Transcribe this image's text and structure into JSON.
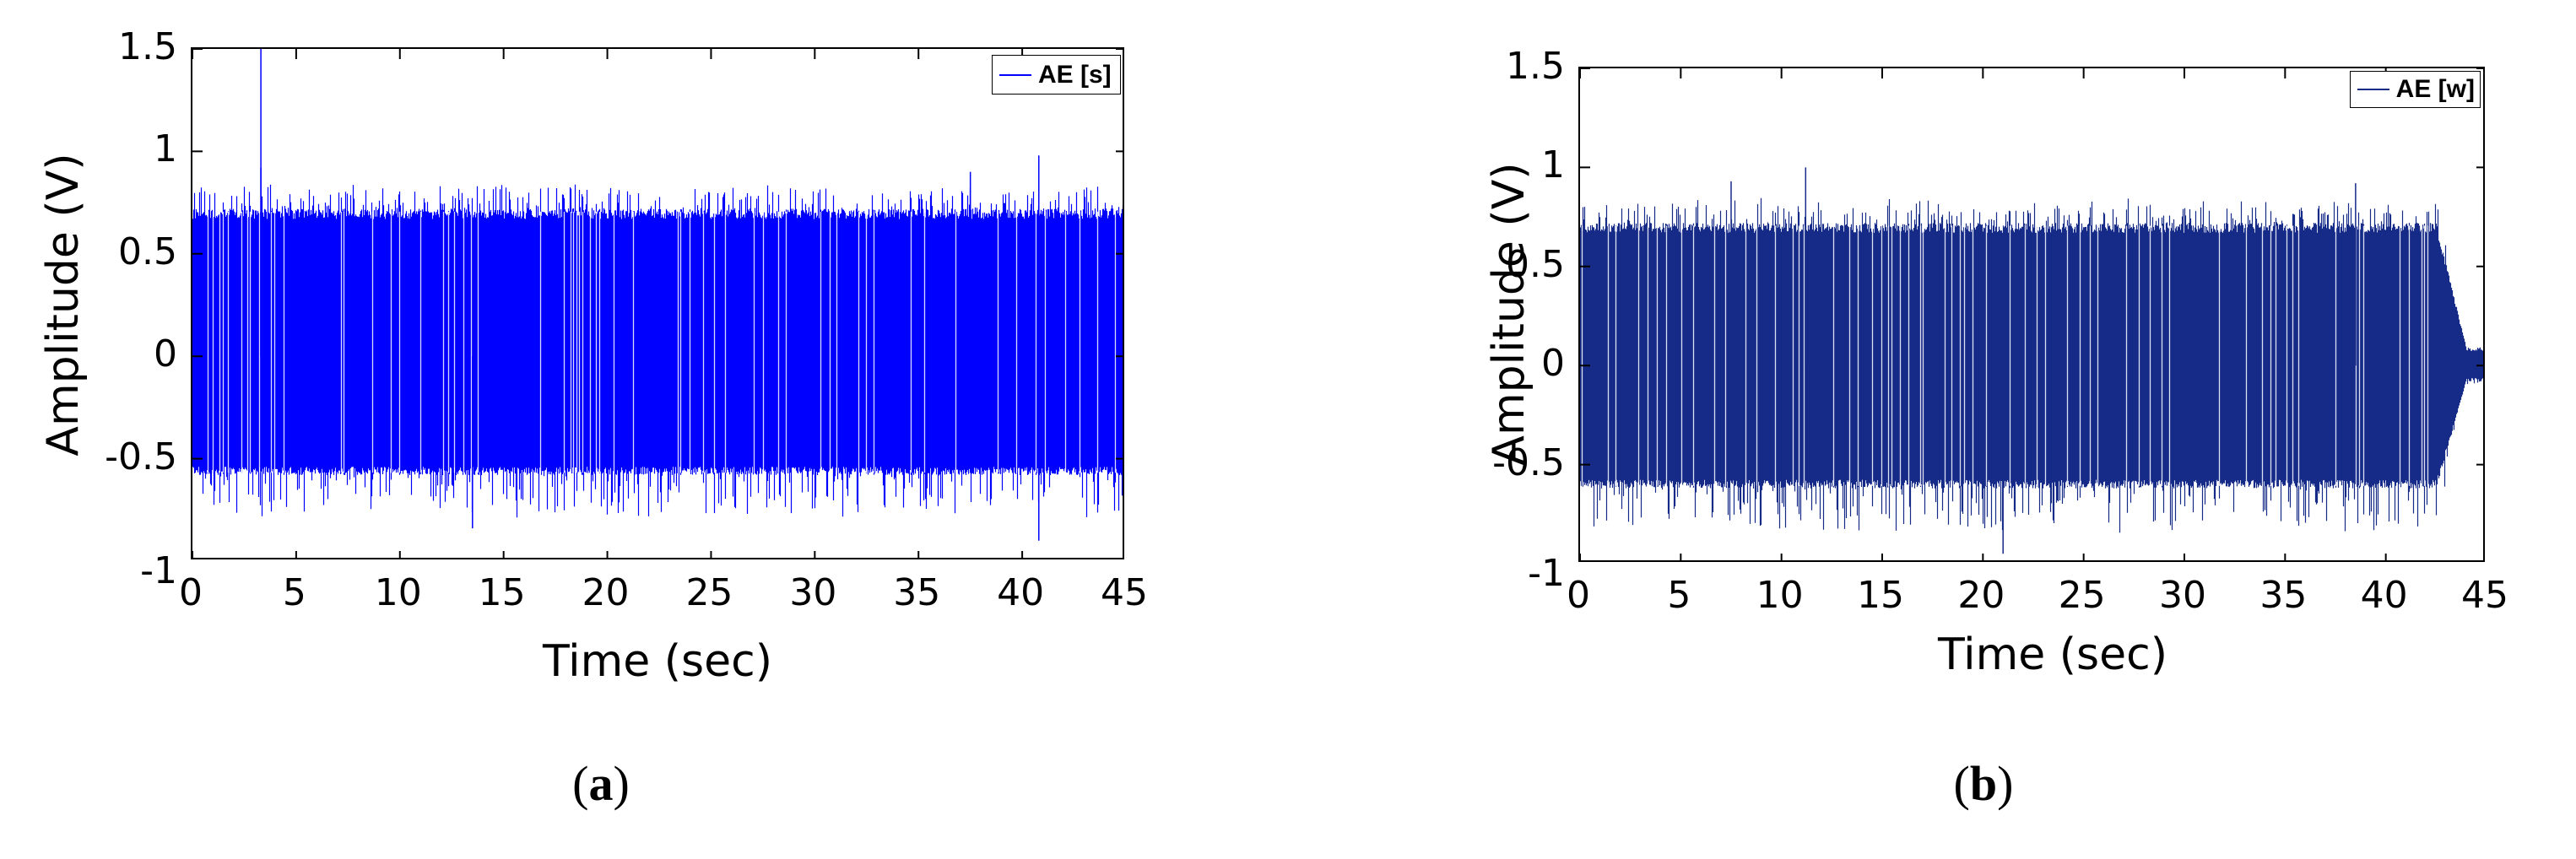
{
  "chart_data": [
    {
      "id": "a",
      "type": "line",
      "caption": "a",
      "title": "",
      "xlabel": "Time (sec)",
      "ylabel": "Amplitude (V)",
      "xlim": [
        0,
        45
      ],
      "ylim": [
        -1,
        1.5
      ],
      "xticks": [
        0,
        5,
        10,
        15,
        20,
        25,
        30,
        35,
        40,
        45
      ],
      "yticks": [
        -1,
        -0.5,
        0,
        0.5,
        1,
        1.5
      ],
      "xtick_labels": [
        "0",
        "5",
        "10",
        "15",
        "20",
        "25",
        "30",
        "35",
        "40",
        "45"
      ],
      "ytick_labels": [
        "-1",
        "-0.5",
        "0",
        "0.5",
        "1",
        "1.5"
      ],
      "grid": false,
      "legend_position": "upper right",
      "series": [
        {
          "name": "AE [s]",
          "color": "#0000ff",
          "signal_summary": {
            "description": "Dense acoustic emission waveform, near-constant envelope across entire 0-45 s record",
            "envelope_core_upper": 0.72,
            "envelope_core_lower": -0.58,
            "typical_peak_max": 0.85,
            "typical_peak_min": -0.8,
            "outliers": [
              {
                "t": 3.3,
                "value": 1.5
              },
              {
                "t": 3.3,
                "value": 0.92
              },
              {
                "t": 40.8,
                "value": -0.9
              },
              {
                "t": 40.8,
                "value": 0.98
              },
              {
                "t": 13.5,
                "value": -0.84
              },
              {
                "t": 37.5,
                "value": 0.9
              }
            ],
            "active_until": 45,
            "tail_amplitude": 0.72
          }
        }
      ]
    },
    {
      "id": "b",
      "type": "line",
      "caption": "b",
      "title": "",
      "xlabel": "Time (sec)",
      "ylabel": "Amplitude (V)",
      "xlim": [
        0,
        45
      ],
      "ylim": [
        -1,
        1.5
      ],
      "xticks": [
        0,
        5,
        10,
        15,
        20,
        25,
        30,
        35,
        40,
        45
      ],
      "yticks": [
        -1,
        -0.5,
        0,
        0.5,
        1,
        1.5
      ],
      "xtick_labels": [
        "0",
        "5",
        "10",
        "15",
        "20",
        "25",
        "30",
        "35",
        "40",
        "45"
      ],
      "ytick_labels": [
        "-1",
        "-0.5",
        "0",
        "0.5",
        "1",
        "1.5"
      ],
      "grid": false,
      "legend_position": "upper right",
      "series": [
        {
          "name": "AE [w]",
          "color": "#162a88",
          "signal_summary": {
            "description": "Dense acoustic emission waveform, constant envelope until ~42.5 s, decays to small residual by ~44 s",
            "envelope_core_upper": 0.72,
            "envelope_core_lower": -0.62,
            "typical_peak_max": 0.85,
            "typical_peak_min": -0.85,
            "outliers": [
              {
                "t": 11.2,
                "value": 1.0
              },
              {
                "t": 21.0,
                "value": -0.95
              },
              {
                "t": 7.5,
                "value": 0.93
              },
              {
                "t": 38.5,
                "value": 0.92
              }
            ],
            "active_until": 42.5,
            "decay_end": 44.0,
            "tail_amplitude": 0.08
          }
        }
      ]
    }
  ],
  "panels": [
    {
      "legend": "AE [s]",
      "xlabel": "Time (sec)",
      "ylabel": "Amplitude (V)",
      "caption": "a"
    },
    {
      "legend": "AE [w]",
      "xlabel": "Time (sec)",
      "ylabel": "Amplitude (V)",
      "caption": "b"
    }
  ]
}
